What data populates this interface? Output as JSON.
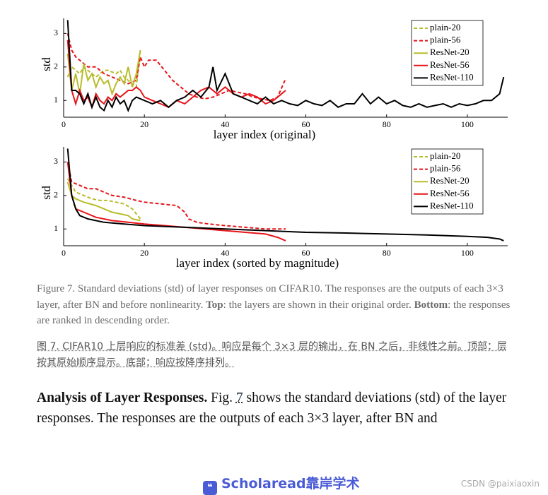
{
  "chart_data": [
    {
      "type": "line",
      "xlabel": "layer index (original)",
      "ylabel": "std",
      "xlim": [
        0,
        110
      ],
      "ylim": [
        0.5,
        3.45
      ],
      "xticks": [
        0,
        20,
        40,
        60,
        80,
        100
      ],
      "yticks": [
        1,
        2,
        3
      ],
      "legend": "upper right",
      "series": [
        {
          "name": "plain-20",
          "color": "#b8bc2a",
          "linestyle": "dashed",
          "x": [
            1,
            2,
            3,
            4,
            5,
            6,
            7,
            8,
            9,
            10,
            11,
            12,
            13,
            14,
            15,
            16,
            17,
            18,
            19
          ],
          "values": [
            1.7,
            2.0,
            1.9,
            1.8,
            2.0,
            1.9,
            1.8,
            1.7,
            1.8,
            1.9,
            1.9,
            1.85,
            1.8,
            1.9,
            1.7,
            1.6,
            1.5,
            1.4,
            2.5
          ]
        },
        {
          "name": "plain-56",
          "color": "#e8141a",
          "linestyle": "dashed",
          "x": [
            1,
            2,
            3,
            4,
            5,
            6,
            8,
            10,
            12,
            14,
            16,
            18,
            19,
            20,
            21,
            22,
            23,
            25,
            27,
            29,
            31,
            33,
            35,
            37,
            39,
            41,
            43,
            45,
            47,
            49,
            51,
            53,
            55
          ],
          "values": [
            3.0,
            2.5,
            2.3,
            2.2,
            2.1,
            2.0,
            2.0,
            1.8,
            1.7,
            1.6,
            1.5,
            1.6,
            2.3,
            2.0,
            2.2,
            2.2,
            2.2,
            1.9,
            1.6,
            1.4,
            1.2,
            1.1,
            1.05,
            1.1,
            1.2,
            1.3,
            1.25,
            1.2,
            1.1,
            1.05,
            1.0,
            1.1,
            1.65
          ]
        },
        {
          "name": "ResNet-20",
          "color": "#b8bc2a",
          "linestyle": "solid",
          "x": [
            1,
            2,
            3,
            4,
            5,
            6,
            7,
            8,
            9,
            10,
            11,
            12,
            13,
            14,
            15,
            16,
            17,
            18,
            19
          ],
          "values": [
            2.4,
            1.3,
            1.8,
            1.2,
            2.1,
            1.6,
            1.8,
            1.4,
            1.7,
            1.5,
            1.6,
            1.2,
            1.5,
            1.7,
            1.5,
            2.0,
            1.4,
            1.8,
            2.5
          ]
        },
        {
          "name": "ResNet-56",
          "color": "#e8141a",
          "linestyle": "solid",
          "x": [
            1,
            2,
            3,
            4,
            5,
            6,
            7,
            8,
            9,
            10,
            11,
            12,
            13,
            14,
            15,
            16,
            17,
            18,
            19,
            20,
            22,
            24,
            26,
            28,
            30,
            32,
            34,
            36,
            38,
            40,
            42,
            44,
            46,
            48,
            50,
            52,
            54,
            55
          ],
          "values": [
            2.8,
            1.3,
            0.9,
            1.3,
            1.0,
            1.1,
            0.8,
            1.2,
            1.0,
            0.9,
            1.1,
            1.0,
            1.2,
            1.1,
            1.2,
            1.3,
            1.3,
            1.4,
            1.3,
            1.1,
            1.0,
            0.9,
            0.8,
            1.0,
            0.9,
            1.1,
            1.3,
            1.4,
            1.2,
            1.4,
            1.2,
            1.1,
            1.2,
            1.1,
            0.9,
            1.0,
            1.2,
            1.3
          ]
        },
        {
          "name": "ResNet-110",
          "color": "#000000",
          "linestyle": "solid",
          "x": [
            1,
            2,
            3,
            4,
            5,
            6,
            7,
            8,
            9,
            10,
            11,
            12,
            13,
            14,
            15,
            16,
            17,
            18,
            20,
            22,
            24,
            26,
            28,
            30,
            32,
            34,
            36,
            37,
            38,
            40,
            42,
            44,
            46,
            48,
            50,
            52,
            54,
            56,
            58,
            60,
            62,
            64,
            66,
            68,
            70,
            72,
            74,
            76,
            78,
            80,
            82,
            84,
            86,
            88,
            90,
            92,
            94,
            96,
            98,
            100,
            102,
            104,
            106,
            108,
            109
          ],
          "values": [
            3.4,
            1.3,
            1.3,
            1.2,
            0.9,
            1.2,
            0.8,
            1.1,
            0.8,
            0.7,
            1.0,
            0.8,
            1.1,
            0.9,
            1.0,
            0.7,
            1.0,
            1.1,
            1.0,
            0.9,
            1.0,
            0.8,
            1.0,
            1.1,
            1.3,
            1.1,
            1.4,
            2.0,
            1.3,
            1.8,
            1.2,
            1.1,
            1.0,
            0.9,
            1.1,
            0.9,
            1.0,
            0.9,
            0.85,
            1.0,
            0.9,
            0.85,
            1.0,
            0.8,
            0.9,
            0.9,
            1.2,
            0.9,
            1.1,
            0.9,
            1.0,
            0.85,
            0.8,
            0.9,
            0.8,
            0.85,
            0.9,
            0.8,
            0.9,
            0.85,
            0.9,
            1.0,
            1.0,
            1.2,
            1.7
          ]
        }
      ]
    },
    {
      "type": "line",
      "xlabel": "layer index (sorted by magnitude)",
      "ylabel": "std",
      "xlim": [
        0,
        110
      ],
      "ylim": [
        0.5,
        3.45
      ],
      "xticks": [
        0,
        20,
        40,
        60,
        80,
        100
      ],
      "yticks": [
        1,
        2,
        3
      ],
      "legend": "upper right",
      "series": [
        {
          "name": "plain-20",
          "color": "#b8bc2a",
          "linestyle": "dashed",
          "x": [
            1,
            3,
            5,
            7,
            9,
            11,
            13,
            15,
            17,
            19
          ],
          "values": [
            2.5,
            2.1,
            2.0,
            1.9,
            1.85,
            1.85,
            1.8,
            1.75,
            1.6,
            1.3
          ]
        },
        {
          "name": "plain-56",
          "color": "#e8141a",
          "linestyle": "dashed",
          "x": [
            1,
            2,
            4,
            6,
            8,
            10,
            12,
            15,
            18,
            20,
            24,
            28,
            30,
            31,
            33,
            36,
            40,
            45,
            50,
            55
          ],
          "values": [
            3.0,
            2.4,
            2.3,
            2.2,
            2.2,
            2.1,
            2.0,
            1.95,
            1.85,
            1.8,
            1.75,
            1.7,
            1.5,
            1.3,
            1.2,
            1.15,
            1.1,
            1.05,
            1.0,
            1.0
          ]
        },
        {
          "name": "ResNet-20",
          "color": "#b8bc2a",
          "linestyle": "solid",
          "x": [
            1,
            2,
            3,
            5,
            8,
            10,
            12,
            14,
            16,
            17,
            19
          ],
          "values": [
            2.4,
            2.0,
            1.9,
            1.8,
            1.7,
            1.6,
            1.5,
            1.45,
            1.4,
            1.3,
            1.25
          ]
        },
        {
          "name": "ResNet-56",
          "color": "#e8141a",
          "linestyle": "solid",
          "x": [
            1,
            2,
            3,
            5,
            8,
            12,
            16,
            20,
            25,
            30,
            35,
            40,
            45,
            50,
            53,
            55
          ],
          "values": [
            3.0,
            2.0,
            1.6,
            1.5,
            1.35,
            1.25,
            1.2,
            1.15,
            1.1,
            1.05,
            1.0,
            0.95,
            0.9,
            0.85,
            0.75,
            0.65
          ]
        },
        {
          "name": "ResNet-110",
          "color": "#000000",
          "linestyle": "solid",
          "x": [
            1,
            2,
            3,
            4,
            6,
            10,
            15,
            20,
            30,
            40,
            50,
            60,
            70,
            80,
            90,
            100,
            105,
            108,
            109
          ],
          "values": [
            3.4,
            2.0,
            1.6,
            1.4,
            1.3,
            1.2,
            1.15,
            1.1,
            1.05,
            1.0,
            0.95,
            0.9,
            0.88,
            0.85,
            0.82,
            0.78,
            0.75,
            0.7,
            0.65
          ]
        }
      ]
    }
  ],
  "caption": [
    "Figure 7. Standard deviations (std) of layer responses on CIFAR10. The responses are the outputs of each 3×3 layer, after BN and before nonlinearity. ",
    "Top",
    ": the layers are shown in their original order. ",
    "Bottom",
    ": the responses are ranked in descending order."
  ],
  "translation": "图 7. CIFAR10 上层响应的标准差 (std)。响应是每个 3×3 层的输出，在 BN 之后，非线性之前。顶部：层按其原始顺序显示。底部：响应按降序排列。",
  "body": [
    "Analysis of Layer Responses.",
    " Fig. ",
    "7",
    " shows the standard deviations (std) of the layer responses. The responses are the outputs of each 3×3 layer, after BN and"
  ],
  "footer": {
    "logo": "Scholaread靠岸学术",
    "watermark": "CSDN @paixiaoxin"
  }
}
